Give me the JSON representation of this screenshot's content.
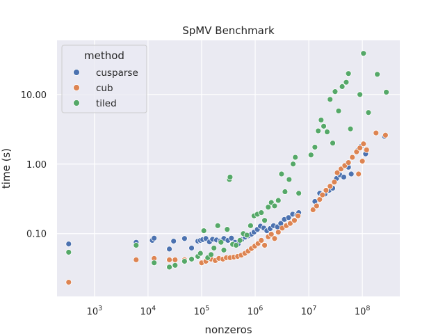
{
  "chart_data": {
    "type": "scatter",
    "title": "SpMV Benchmark",
    "xlabel": "nonzeros",
    "ylabel": "time (s)",
    "xscale": "log",
    "yscale": "log",
    "xlim": [
      200,
      500000000
    ],
    "ylim": [
      0.0125,
      60
    ],
    "x_ticks": [
      1000,
      10000,
      100000,
      1000000,
      10000000,
      100000000
    ],
    "x_tick_labels": [
      {
        "base": "10",
        "exp": "3"
      },
      {
        "base": "10",
        "exp": "4"
      },
      {
        "base": "10",
        "exp": "5"
      },
      {
        "base": "10",
        "exp": "6"
      },
      {
        "base": "10",
        "exp": "7"
      },
      {
        "base": "10",
        "exp": "8"
      }
    ],
    "y_ticks": [
      0.1,
      1,
      10
    ],
    "y_tick_labels": [
      "0.10",
      "1.00",
      "10.00"
    ],
    "grid": true,
    "background": "#eaeaf2",
    "legend": {
      "title": "method",
      "position": "top-left"
    },
    "series": [
      {
        "name": "cusparse",
        "color": "#4c72b0",
        "points": [
          [
            330,
            0.071
          ],
          [
            6000,
            0.075
          ],
          [
            12000,
            0.08
          ],
          [
            13000,
            0.086
          ],
          [
            25000,
            0.06
          ],
          [
            30000,
            0.078
          ],
          [
            48000,
            0.085
          ],
          [
            65000,
            0.062
          ],
          [
            85000,
            0.078
          ],
          [
            95000,
            0.08
          ],
          [
            105000,
            0.082
          ],
          [
            120000,
            0.085
          ],
          [
            140000,
            0.076
          ],
          [
            160000,
            0.083
          ],
          [
            190000,
            0.081
          ],
          [
            220000,
            0.078
          ],
          [
            260000,
            0.085
          ],
          [
            310000,
            0.08
          ],
          [
            360000,
            0.086
          ],
          [
            420000,
            0.075
          ],
          [
            480000,
            0.071
          ],
          [
            560000,
            0.082
          ],
          [
            650000,
            0.089
          ],
          [
            750000,
            0.093
          ],
          [
            850000,
            0.098
          ],
          [
            950000,
            0.105
          ],
          [
            1100000,
            0.115
          ],
          [
            1250000,
            0.128
          ],
          [
            1450000,
            0.12
          ],
          [
            1650000,
            0.11
          ],
          [
            1900000,
            0.118
          ],
          [
            2200000,
            0.13
          ],
          [
            2600000,
            0.125
          ],
          [
            3000000,
            0.14
          ],
          [
            3500000,
            0.16
          ],
          [
            4200000,
            0.17
          ],
          [
            5000000,
            0.19
          ],
          [
            6000000,
            0.185
          ],
          [
            6500000,
            0.2
          ],
          [
            13000000,
            0.29
          ],
          [
            16000000,
            0.38
          ],
          [
            20000000,
            0.37
          ],
          [
            24000000,
            0.42
          ],
          [
            28000000,
            0.45
          ],
          [
            33000000,
            0.62
          ],
          [
            38000000,
            0.7
          ],
          [
            45000000,
            0.65
          ],
          [
            55000000,
            0.9
          ],
          [
            62000000,
            0.72
          ],
          [
            80000000,
            1.55
          ],
          [
            95000000,
            1.8
          ],
          [
            115000000,
            1.4
          ],
          [
            260000000,
            2.5
          ]
        ]
      },
      {
        "name": "cub",
        "color": "#dd8452",
        "points": [
          [
            330,
            0.02
          ],
          [
            6000,
            0.042
          ],
          [
            13000,
            0.044
          ],
          [
            25000,
            0.042
          ],
          [
            32000,
            0.042
          ],
          [
            48000,
            0.042
          ],
          [
            100000,
            0.038
          ],
          [
            120000,
            0.04
          ],
          [
            150000,
            0.043
          ],
          [
            180000,
            0.041
          ],
          [
            210000,
            0.044
          ],
          [
            250000,
            0.043
          ],
          [
            290000,
            0.045
          ],
          [
            340000,
            0.045
          ],
          [
            400000,
            0.046
          ],
          [
            470000,
            0.047
          ],
          [
            550000,
            0.049
          ],
          [
            640000,
            0.052
          ],
          [
            740000,
            0.056
          ],
          [
            850000,
            0.061
          ],
          [
            980000,
            0.066
          ],
          [
            1130000,
            0.072
          ],
          [
            1300000,
            0.08
          ],
          [
            1500000,
            0.068
          ],
          [
            1750000,
            0.09
          ],
          [
            2000000,
            0.098
          ],
          [
            2300000,
            0.085
          ],
          [
            2700000,
            0.105
          ],
          [
            3200000,
            0.12
          ],
          [
            3800000,
            0.13
          ],
          [
            4500000,
            0.14
          ],
          [
            5400000,
            0.155
          ],
          [
            6300000,
            0.18
          ],
          [
            12000000,
            0.22
          ],
          [
            14000000,
            0.25
          ],
          [
            16000000,
            0.31
          ],
          [
            18000000,
            0.36
          ],
          [
            21000000,
            0.42
          ],
          [
            25000000,
            0.48
          ],
          [
            30000000,
            0.55
          ],
          [
            34000000,
            0.75
          ],
          [
            40000000,
            0.85
          ],
          [
            47000000,
            0.95
          ],
          [
            55000000,
            1.05
          ],
          [
            65000000,
            1.25
          ],
          [
            78000000,
            1.5
          ],
          [
            90000000,
            1.7
          ],
          [
            105000000,
            1.95
          ],
          [
            120000000,
            1.6
          ],
          [
            180000000,
            2.8
          ],
          [
            270000000,
            2.6
          ],
          [
            100000000,
            1.1
          ],
          [
            85000000,
            0.72
          ]
        ]
      },
      {
        "name": "tiled",
        "color": "#55a868",
        "points": [
          [
            330,
            0.054
          ],
          [
            6000,
            0.068
          ],
          [
            13000,
            0.038
          ],
          [
            25000,
            0.033
          ],
          [
            32000,
            0.035
          ],
          [
            48000,
            0.04
          ],
          [
            65000,
            0.043
          ],
          [
            85000,
            0.047
          ],
          [
            95000,
            0.052
          ],
          [
            110000,
            0.11
          ],
          [
            130000,
            0.045
          ],
          [
            150000,
            0.05
          ],
          [
            170000,
            0.062
          ],
          [
            200000,
            0.13
          ],
          [
            230000,
            0.075
          ],
          [
            260000,
            0.058
          ],
          [
            300000,
            0.115
          ],
          [
            330000,
            0.6
          ],
          [
            340000,
            0.65
          ],
          [
            380000,
            0.07
          ],
          [
            440000,
            0.068
          ],
          [
            520000,
            0.08
          ],
          [
            600000,
            0.1
          ],
          [
            700000,
            0.095
          ],
          [
            820000,
            0.13
          ],
          [
            950000,
            0.18
          ],
          [
            1100000,
            0.19
          ],
          [
            1300000,
            0.2
          ],
          [
            1500000,
            0.155
          ],
          [
            1750000,
            0.24
          ],
          [
            2000000,
            0.28
          ],
          [
            2300000,
            0.25
          ],
          [
            2700000,
            0.3
          ],
          [
            3100000,
            0.72
          ],
          [
            3600000,
            0.4
          ],
          [
            4300000,
            0.6
          ],
          [
            5100000,
            1.0
          ],
          [
            5600000,
            1.25
          ],
          [
            6500000,
            0.38
          ],
          [
            11000000,
            1.35
          ],
          [
            13000000,
            1.75
          ],
          [
            15000000,
            3.0
          ],
          [
            17000000,
            4.3
          ],
          [
            19000000,
            3.5
          ],
          [
            22000000,
            2.9
          ],
          [
            25000000,
            8.5
          ],
          [
            28000000,
            2.0
          ],
          [
            31000000,
            11.0
          ],
          [
            36000000,
            5.8
          ],
          [
            42000000,
            13.0
          ],
          [
            50000000,
            15.0
          ],
          [
            55000000,
            20.0
          ],
          [
            60000000,
            3.2
          ],
          [
            90000000,
            10.0
          ],
          [
            105000000,
            39.0
          ],
          [
            130000000,
            5.5
          ],
          [
            190000000,
            19.5
          ],
          [
            280000000,
            10.8
          ]
        ]
      }
    ]
  }
}
